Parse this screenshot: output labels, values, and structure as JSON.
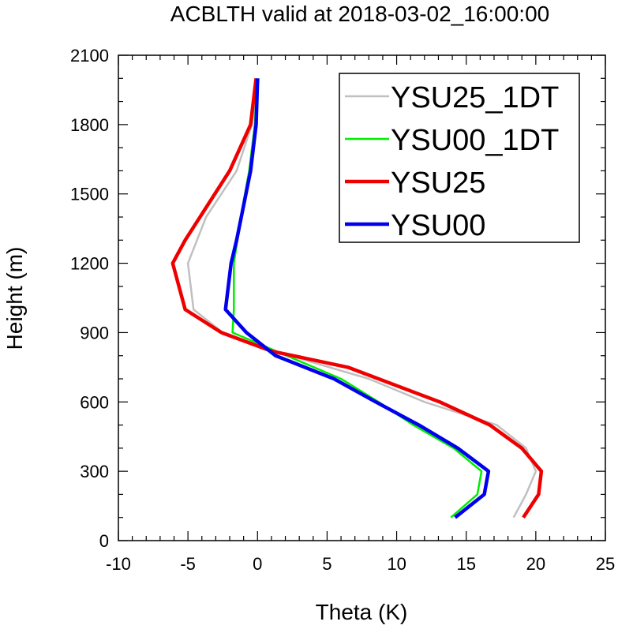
{
  "chart_data": {
    "type": "line",
    "title": "ACBLTH valid at 2018-03-02_16:00:00",
    "xlabel": "Theta (K)",
    "ylabel": "Height (m)",
    "xlim": [
      -10,
      25
    ],
    "ylim": [
      0,
      2100
    ],
    "x_ticks": [
      "-10",
      "-5",
      "0",
      "5",
      "10",
      "15",
      "20",
      "25"
    ],
    "y_ticks": [
      "0",
      "300",
      "600",
      "900",
      "1200",
      "1500",
      "1800",
      "2100"
    ],
    "legend_position": "top-right",
    "grid": false,
    "series": [
      {
        "name": "YSU25_1DT",
        "color": "#c0c0c0",
        "width": "thin",
        "points": [
          [
            18.4,
            100
          ],
          [
            19.3,
            200
          ],
          [
            20.0,
            300
          ],
          [
            19.3,
            400
          ],
          [
            17.2,
            500
          ],
          [
            12.0,
            600
          ],
          [
            8.0,
            700
          ],
          [
            -0.5,
            850
          ],
          [
            -2.5,
            900
          ],
          [
            -4.6,
            1000
          ],
          [
            -5.0,
            1200
          ],
          [
            -3.7,
            1400
          ],
          [
            -1.5,
            1600
          ],
          [
            -0.4,
            1800
          ],
          [
            0.1,
            2000
          ]
        ]
      },
      {
        "name": "YSU00_1DT",
        "color": "#00ee00",
        "width": "thin",
        "points": [
          [
            13.9,
            100
          ],
          [
            15.8,
            200
          ],
          [
            16.1,
            300
          ],
          [
            14.1,
            400
          ],
          [
            11.2,
            500
          ],
          [
            8.7,
            600
          ],
          [
            6.0,
            700
          ],
          [
            -1.8,
            900
          ],
          [
            -1.7,
            1000
          ],
          [
            -1.7,
            1200
          ],
          [
            -1.2,
            1400
          ],
          [
            -0.6,
            1600
          ],
          [
            -0.2,
            1800
          ],
          [
            0.0,
            2000
          ]
        ]
      },
      {
        "name": "YSU25",
        "color": "#ee0000",
        "width": "thick",
        "points": [
          [
            19.1,
            100
          ],
          [
            20.2,
            200
          ],
          [
            20.4,
            300
          ],
          [
            19.0,
            400
          ],
          [
            16.7,
            500
          ],
          [
            13.1,
            600
          ],
          [
            6.5,
            750
          ],
          [
            1.0,
            820
          ],
          [
            -2.6,
            900
          ],
          [
            -5.2,
            1000
          ],
          [
            -6.1,
            1200
          ],
          [
            -5.2,
            1300
          ],
          [
            -2.0,
            1600
          ],
          [
            -0.5,
            1800
          ],
          [
            -0.1,
            2000
          ]
        ]
      },
      {
        "name": "YSU00",
        "color": "#0000ee",
        "width": "thick",
        "points": [
          [
            14.2,
            100
          ],
          [
            16.3,
            200
          ],
          [
            16.6,
            300
          ],
          [
            14.4,
            400
          ],
          [
            11.6,
            500
          ],
          [
            8.5,
            600
          ],
          [
            5.5,
            700
          ],
          [
            1.3,
            800
          ],
          [
            -0.8,
            900
          ],
          [
            -2.3,
            1000
          ],
          [
            -1.9,
            1200
          ],
          [
            -1.5,
            1300
          ],
          [
            -0.5,
            1600
          ],
          [
            -0.1,
            1800
          ],
          [
            0.0,
            2000
          ]
        ]
      }
    ]
  }
}
